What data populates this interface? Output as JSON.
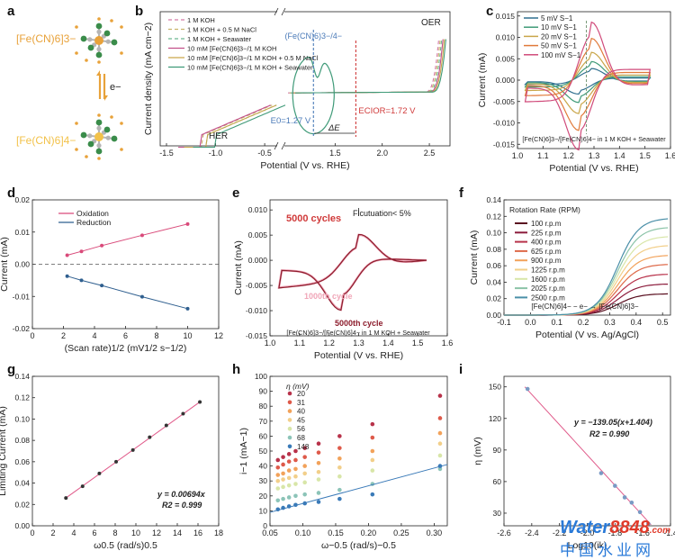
{
  "panel_labels": [
    "a",
    "b",
    "c",
    "d",
    "e",
    "f",
    "g",
    "h",
    "i"
  ],
  "panel_a": {
    "top_label": "[Fe(CN)6]3−",
    "bottom_label": "[Fe(CN)6]4−",
    "electron": "e−",
    "colors": {
      "orange": "#e8a23a",
      "fe": "#f2c24a",
      "cn": "#3a8c4a",
      "n": "#2e7d3a",
      "ghost": "#b5b5b5"
    }
  },
  "chart_data": [
    {
      "id": "b",
      "type": "line",
      "xlabel": "Potential (V vs. RHE)",
      "ylabel": "Current density (mA cm−2)",
      "xticks": [
        "-1.5",
        "-1.0",
        "-0.5",
        "1.5",
        "2.0",
        "2.5"
      ],
      "legend": [
        {
          "name": "1 M KOH",
          "color": "#d47aa8",
          "dash": "4,3"
        },
        {
          "name": "1 M KOH + 0.5 M NaCl",
          "color": "#c9b36a",
          "dash": "4,3"
        },
        {
          "name": "1 M KOH + Seawater",
          "color": "#6cb890",
          "dash": "4,3"
        },
        {
          "name": "10 mM [Fe(CN)6]3−/1 M KOH",
          "color": "#c2508a",
          "dash": ""
        },
        {
          "name": "10 mM [Fe(CN)6]3−/1 M KOH + 0.5 M NaCl",
          "color": "#c9a64a",
          "dash": ""
        },
        {
          "name": "10 mM [Fe(CN)6]3−/1 M KOH + Seawater",
          "color": "#3f9a78",
          "dash": ""
        }
      ],
      "annotations": {
        "oer": "OER",
        "her": "HER",
        "redox": "(Fe(CN)6)3−/4−",
        "e0": "E0=1.27 V",
        "ecior": "ECIOR=1.72 V",
        "delta": "ΔE"
      }
    },
    {
      "id": "c",
      "type": "line",
      "xlabel": "Potential (V vs. RHE)",
      "ylabel": "Current (mA)",
      "xticks": [
        "1.0",
        "1.1",
        "1.2",
        "1.3",
        "1.4",
        "1.5",
        "1.6"
      ],
      "yticks": [
        "-0.015",
        "-0.010",
        "-0.005",
        "0.000",
        "0.005",
        "0.010",
        "0.015"
      ],
      "xlim": [
        1.0,
        1.6
      ],
      "ylim": [
        -0.016,
        0.016
      ],
      "series": [
        {
          "name": "5 mV S−1",
          "color": "#2f6f8f",
          "ia": 0.0025
        },
        {
          "name": "10 mV S−1",
          "color": "#3f9a78",
          "ia": 0.004
        },
        {
          "name": "20 mV S−1",
          "color": "#c9a64a",
          "ia": 0.006
        },
        {
          "name": "50 mV S−1",
          "color": "#e07a3a",
          "ia": 0.009
        },
        {
          "name": "100 mV S−1",
          "color": "#d04a7a",
          "ia": 0.0125
        }
      ],
      "caption": "[Fe(CN)6]3−/[Fe(CN)6]4− in 1 M KOH + Seawater"
    },
    {
      "id": "d",
      "type": "scatter",
      "xlabel": "(Scan rate)1/2 (mV1/2 s−1/2)",
      "ylabel": "Current (mA)",
      "xticks": [
        "0",
        "2",
        "4",
        "6",
        "8",
        "10",
        "12"
      ],
      "yticks": [
        "-0.02",
        "-0.01",
        "0.00",
        "0.01",
        "0.02"
      ],
      "xlim": [
        0,
        12
      ],
      "ylim": [
        -0.02,
        0.02
      ],
      "x": [
        2.24,
        3.16,
        4.47,
        7.07,
        10.0
      ],
      "series": [
        {
          "name": "Oxidation",
          "color": "#d94a7a",
          "values": [
            0.0028,
            0.004,
            0.0058,
            0.009,
            0.0125
          ]
        },
        {
          "name": "Reduction",
          "color": "#2f5f8f",
          "values": [
            -0.0037,
            -0.005,
            -0.0066,
            -0.0101,
            -0.0138
          ]
        }
      ]
    },
    {
      "id": "e",
      "type": "line",
      "xlabel": "Potential (V vs. RHE)",
      "ylabel": "Current (mA)",
      "xticks": [
        "1.0",
        "1.1",
        "1.2",
        "1.3",
        "1.4",
        "1.5",
        "1.6"
      ],
      "yticks": [
        "-0.015",
        "-0.010",
        "-0.005",
        "0.000",
        "0.005",
        "0.010"
      ],
      "xlim": [
        1.0,
        1.6
      ],
      "ylim": [
        -0.015,
        0.012
      ],
      "series": [
        {
          "name": "1000th cycle",
          "color": "#f0a6b8"
        },
        {
          "name": "5000th cycle",
          "color": "#8c1c2c"
        }
      ],
      "title": "5000 cycles",
      "fluct": "Flcutuation< 5%",
      "caption": "[Fe(CN)6]3−/[Fe(CN)6]4− in 1 M KOH + Seawater"
    },
    {
      "id": "f",
      "type": "line",
      "xlabel": "Potential (V vs. Ag/AgCl)",
      "ylabel": "Current (mA)",
      "xticks": [
        "-0.1",
        "0.0",
        "0.1",
        "0.2",
        "0.3",
        "0.4",
        "0.5"
      ],
      "yticks": [
        "0.00",
        "0.02",
        "0.04",
        "0.06",
        "0.08",
        "0.10",
        "0.12",
        "0.14"
      ],
      "xlim": [
        -0.1,
        0.53
      ],
      "ylim": [
        0,
        0.14
      ],
      "legend_title": "Rotation Rate (RPM)",
      "series": [
        {
          "name": "100 r.p.m",
          "color": "#5a1020",
          "il": 0.026
        },
        {
          "name": "225 r.p.m",
          "color": "#8c1c3c",
          "il": 0.038
        },
        {
          "name": "400 r.p.m",
          "color": "#b8324a",
          "il": 0.05
        },
        {
          "name": "625 r.p.m",
          "color": "#de6a4a",
          "il": 0.062
        },
        {
          "name": "900 r.p.m",
          "color": "#f2a25a",
          "il": 0.073
        },
        {
          "name": "1225 r.p.m",
          "color": "#f2cf8a",
          "il": 0.085
        },
        {
          "name": "1600 r.p.m",
          "color": "#d8e6a8",
          "il": 0.096
        },
        {
          "name": "2025 r.p.m",
          "color": "#8cc4a8",
          "il": 0.107
        },
        {
          "name": "2500 r.p.m",
          "color": "#4a8fa8",
          "il": 0.118
        }
      ],
      "caption": "[Fe(CN)6]4− − e− → [Fe(CN)6]3−"
    },
    {
      "id": "g",
      "type": "scatter",
      "xlabel": "ω0.5 (rad/s)0.5",
      "ylabel": "Limiting Current (mA)",
      "xticks": [
        "0",
        "2",
        "4",
        "6",
        "8",
        "10",
        "12",
        "14",
        "16",
        "18"
      ],
      "yticks": [
        "0.00",
        "0.02",
        "0.04",
        "0.06",
        "0.08",
        "0.10",
        "0.12",
        "0.14"
      ],
      "xlim": [
        0,
        18
      ],
      "ylim": [
        0,
        0.14
      ],
      "x": [
        3.24,
        4.85,
        6.47,
        8.09,
        9.71,
        11.33,
        12.94,
        14.56,
        16.18
      ],
      "values": [
        0.026,
        0.037,
        0.049,
        0.06,
        0.071,
        0.083,
        0.094,
        0.105,
        0.116
      ],
      "color": "#333333",
      "fit_color": "#e05a8a",
      "equation": "y = 0.00694x",
      "r2": "R2 = 0.999"
    },
    {
      "id": "h",
      "type": "scatter",
      "xlabel": "ω−0.5 (rad/s)−0.5",
      "ylabel": "i−1 (mA−1)",
      "xticks": [
        "0.05",
        "0.10",
        "0.15",
        "0.20",
        "0.25",
        "0.30"
      ],
      "yticks": [
        "0",
        "10",
        "20",
        "30",
        "40",
        "50",
        "60",
        "70",
        "80",
        "90",
        "100"
      ],
      "xlim": [
        0.05,
        0.32
      ],
      "ylim": [
        0,
        100
      ],
      "x": [
        0.062,
        0.07,
        0.079,
        0.089,
        0.103,
        0.124,
        0.156,
        0.206,
        0.309
      ],
      "legend_title": "η (mV)",
      "series": [
        {
          "name": "20",
          "color": "#b8324a",
          "values": [
            44,
            46,
            48,
            50,
            52,
            55,
            60,
            68,
            87
          ]
        },
        {
          "name": "31",
          "color": "#de5a4a",
          "values": [
            39,
            41,
            43,
            44,
            46,
            49,
            52,
            59,
            72
          ]
        },
        {
          "name": "40",
          "color": "#f2a25a",
          "values": [
            34,
            35,
            37,
            38,
            40,
            42,
            45,
            50,
            62
          ]
        },
        {
          "name": "45",
          "color": "#f2cf8a",
          "values": [
            30,
            31,
            32,
            33,
            35,
            36,
            39,
            44,
            55
          ]
        },
        {
          "name": "56",
          "color": "#d8e6a8",
          "values": [
            25,
            26,
            27,
            28,
            29,
            31,
            33,
            37,
            47
          ]
        },
        {
          "name": "68",
          "color": "#8cc4b8",
          "values": [
            17,
            18,
            19,
            20,
            21,
            22,
            24,
            28,
            38
          ]
        },
        {
          "name": "148",
          "color": "#3a7ab8",
          "values": [
            11,
            12,
            13,
            14,
            15,
            16,
            18,
            21,
            40
          ]
        }
      ]
    },
    {
      "id": "i",
      "type": "scatter",
      "xlabel": "Log10(ik)",
      "ylabel": "η (mV)",
      "xticks": [
        "-2.6",
        "-2.4",
        "-2.2",
        "-2.0",
        "-1.8",
        "-1.6",
        "-1.4"
      ],
      "yticks": [
        "30",
        "60",
        "90",
        "120",
        "150"
      ],
      "xlim": [
        -2.6,
        -1.4
      ],
      "ylim": [
        18,
        160
      ],
      "x": [
        -2.43,
        -1.9,
        -1.8,
        -1.73,
        -1.68,
        -1.62,
        -1.56
      ],
      "values": [
        148,
        68,
        56,
        45,
        40,
        31,
        20
      ],
      "color": "#7a9ac4",
      "fit_color": "#e05a8a",
      "equation": "y = −139.05(x+1.404)",
      "r2": "R2 = 0.990"
    }
  ],
  "watermark": {
    "brand": "Water",
    "num": "8848",
    "suffix": ".com",
    "cn": "中国水业网"
  }
}
